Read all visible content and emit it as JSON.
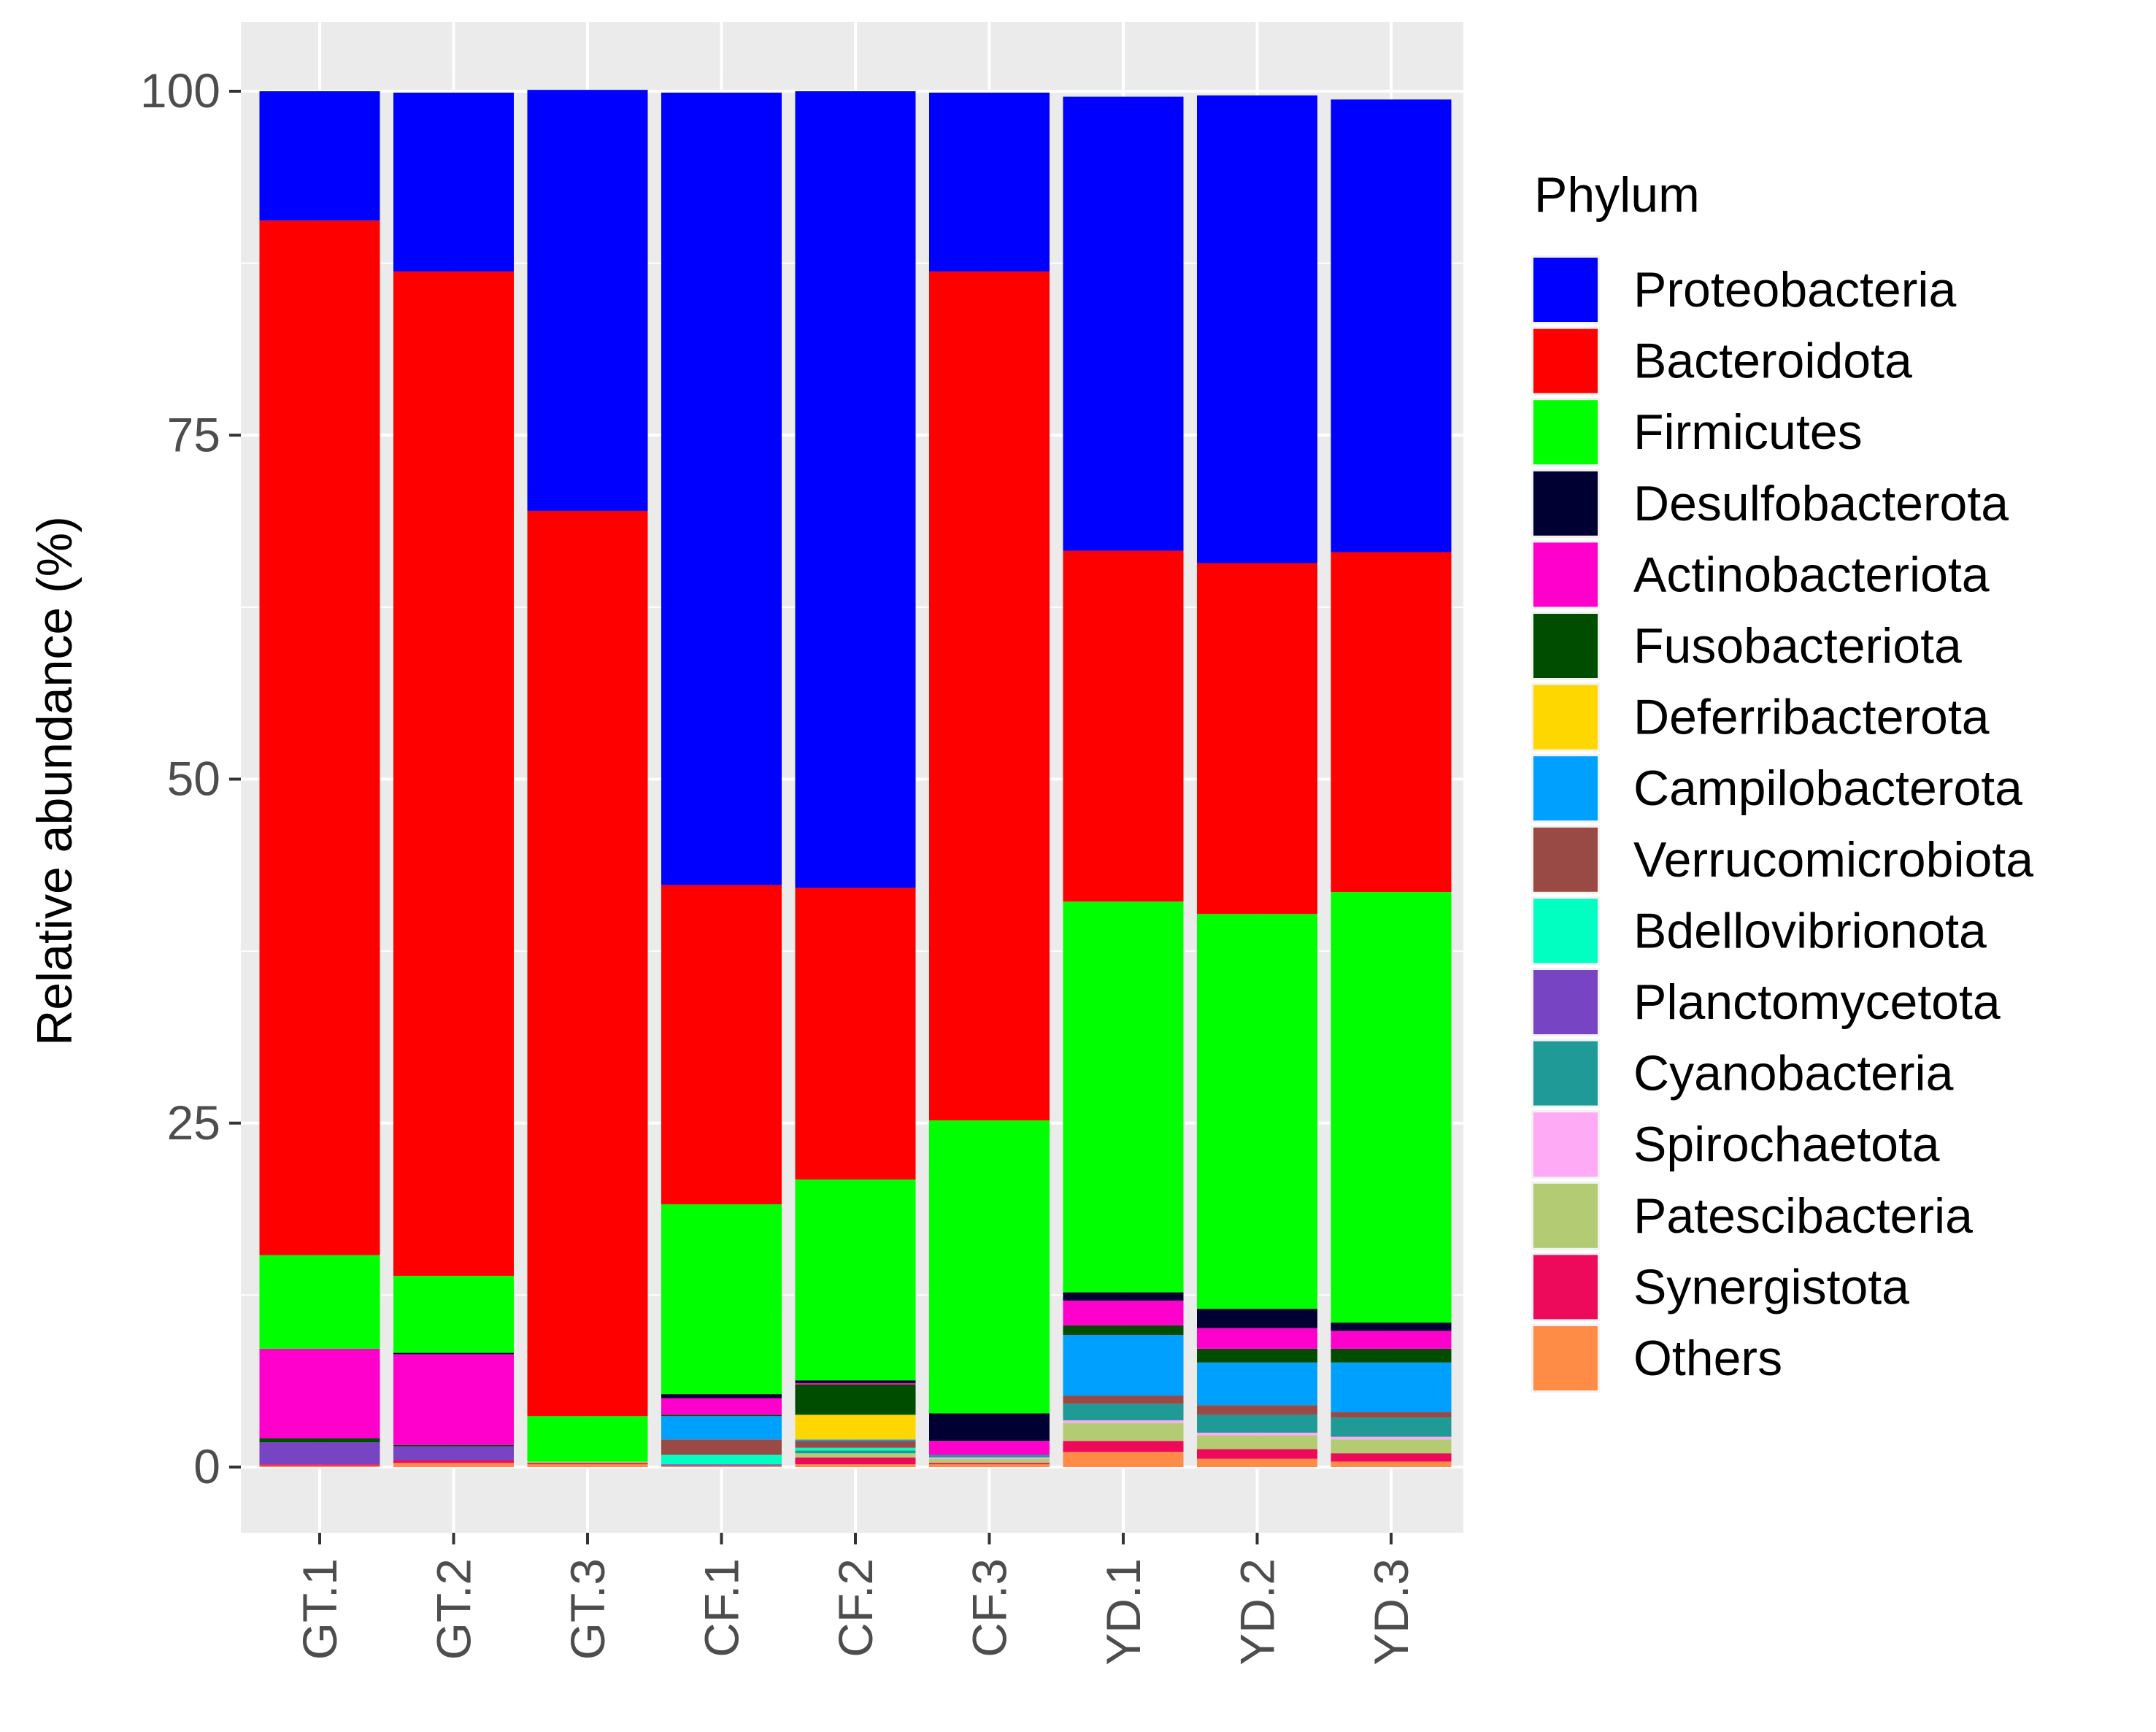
{
  "chart_data": {
    "type": "bar",
    "stacked": true,
    "title": "",
    "xlabel": "",
    "ylabel": "Relative abundance (%)",
    "ylim": [
      0,
      100
    ],
    "yticks": [
      0,
      25,
      50,
      75,
      100
    ],
    "grid": true,
    "legend": {
      "title": "Phylum",
      "placement": "right",
      "entries": [
        {
          "name": "Proteobacteria",
          "color": "#0000FF"
        },
        {
          "name": "Bacteroidota",
          "color": "#FF0000"
        },
        {
          "name": "Firmicutes",
          "color": "#00FF00"
        },
        {
          "name": "Desulfobacterota",
          "color": "#000033"
        },
        {
          "name": "Actinobacteriota",
          "color": "#FF00CC"
        },
        {
          "name": "Fusobacteriota",
          "color": "#004D00"
        },
        {
          "name": "Deferribacterota",
          "color": "#FFD700"
        },
        {
          "name": "Campilobacterota",
          "color": "#00A0FF"
        },
        {
          "name": "Verrucomicrobiota",
          "color": "#9A4A44"
        },
        {
          "name": "Bdellovibrionota",
          "color": "#00FFC0"
        },
        {
          "name": "Planctomycetota",
          "color": "#7744C4"
        },
        {
          "name": "Cyanobacteria",
          "color": "#1F9A96"
        },
        {
          "name": "Spirochaetota",
          "color": "#FFAAF5"
        },
        {
          "name": "Patescibacteria",
          "color": "#B3CB72"
        },
        {
          "name": "Synergistota",
          "color": "#EE0A5A"
        },
        {
          "name": "Others",
          "color": "#FF8C46"
        }
      ]
    },
    "categories": [
      "GT.1",
      "GT.2",
      "GT.3",
      "CF.1",
      "CF.2",
      "CF.3",
      "YD.1",
      "YD.2",
      "YD.3"
    ],
    "series": [
      {
        "name": "Proteobacteria",
        "values": [
          9.4,
          13.0,
          30.6,
          57.6,
          57.9,
          13.0,
          33.0,
          34.0,
          32.9
        ]
      },
      {
        "name": "Bacteroidota",
        "values": [
          75.2,
          73.0,
          65.8,
          23.2,
          21.2,
          61.7,
          25.5,
          25.5,
          24.7
        ]
      },
      {
        "name": "Firmicutes",
        "values": [
          6.8,
          5.6,
          3.3,
          13.8,
          14.6,
          21.3,
          28.4,
          28.7,
          31.3
        ]
      },
      {
        "name": "Desulfobacterota",
        "values": [
          0.0,
          0.1,
          0.0,
          0.3,
          0.2,
          2.0,
          0.6,
          1.4,
          0.6
        ]
      },
      {
        "name": "Actinobacteriota",
        "values": [
          6.5,
          6.6,
          0.0,
          1.2,
          0.1,
          1.0,
          1.8,
          1.5,
          1.3
        ]
      },
      {
        "name": "Fusobacteriota",
        "values": [
          0.3,
          0.1,
          0.0,
          0.1,
          2.2,
          0.0,
          0.7,
          1.0,
          1.0
        ]
      },
      {
        "name": "Deferribacterota",
        "values": [
          0.0,
          0.0,
          0.0,
          0.0,
          1.8,
          0.0,
          0.0,
          0.0,
          0.0
        ]
      },
      {
        "name": "Campilobacterota",
        "values": [
          0.0,
          0.0,
          0.0,
          1.7,
          0.1,
          0.0,
          4.4,
          3.1,
          3.6
        ]
      },
      {
        "name": "Verrucomicrobiota",
        "values": [
          0.0,
          0.0,
          0.0,
          1.1,
          0.5,
          0.0,
          0.6,
          0.7,
          0.4
        ]
      },
      {
        "name": "Bdellovibrionota",
        "values": [
          0.0,
          0.0,
          0.0,
          0.7,
          0.2,
          0.0,
          0.0,
          0.0,
          0.0
        ]
      },
      {
        "name": "Planctomycetota",
        "values": [
          1.6,
          1.0,
          0.0,
          0.1,
          0.0,
          0.0,
          0.0,
          0.0,
          0.0
        ]
      },
      {
        "name": "Cyanobacteria",
        "values": [
          0.0,
          0.0,
          0.0,
          0.0,
          0.2,
          0.2,
          1.2,
          1.3,
          1.4
        ]
      },
      {
        "name": "Spirochaetota",
        "values": [
          0.0,
          0.0,
          0.0,
          0.0,
          0.0,
          0.1,
          0.2,
          0.2,
          0.2
        ]
      },
      {
        "name": "Patescibacteria",
        "values": [
          0.0,
          0.0,
          0.1,
          0.0,
          0.3,
          0.3,
          1.3,
          1.0,
          1.0
        ]
      },
      {
        "name": "Synergistota",
        "values": [
          0.1,
          0.2,
          0.1,
          0.0,
          0.5,
          0.1,
          0.8,
          0.7,
          0.6
        ]
      },
      {
        "name": "Others",
        "values": [
          0.1,
          0.3,
          0.2,
          0.1,
          0.2,
          0.2,
          1.1,
          0.6,
          0.4
        ]
      }
    ],
    "style": {
      "panel_background": "#EBEBEB",
      "grid_color": "#FFFFFF",
      "axis_text_color": "#4D4D4D",
      "text_color": "#000000"
    }
  }
}
